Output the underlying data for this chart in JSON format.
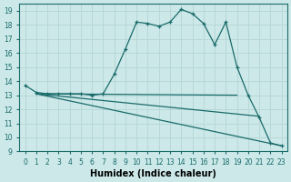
{
  "xlabel": "Humidex (Indice chaleur)",
  "bg_color": "#cce8e8",
  "line_color": "#1a6b6b",
  "grid_color": "#b8d8d8",
  "xlim": [
    -0.5,
    23.5
  ],
  "ylim": [
    9,
    19.5
  ],
  "xtick_labels": [
    "0",
    "1",
    "2",
    "3",
    "4",
    "5",
    "6",
    "7",
    "8",
    "9",
    "10",
    "11",
    "12",
    "13",
    "14",
    "15",
    "16",
    "17",
    "18",
    "19",
    "20",
    "21",
    "22",
    "23"
  ],
  "yticks": [
    9,
    10,
    11,
    12,
    13,
    14,
    15,
    16,
    17,
    18,
    19
  ],
  "curve1_x": [
    0,
    1,
    2,
    3,
    4,
    5,
    6,
    7,
    8,
    9,
    10,
    11,
    12,
    13,
    14,
    15,
    16,
    17,
    18,
    19,
    20,
    21,
    22,
    23
  ],
  "curve1_y": [
    13.7,
    13.2,
    13.1,
    13.1,
    13.1,
    13.1,
    13.0,
    13.1,
    14.5,
    16.3,
    18.2,
    18.1,
    17.9,
    18.2,
    19.1,
    18.8,
    18.1,
    16.6,
    18.2,
    15.0,
    13.0,
    11.4,
    9.6,
    9.4
  ],
  "line2_x": [
    1,
    19
  ],
  "line2_y": [
    13.1,
    13.0
  ],
  "line3_x": [
    1,
    23
  ],
  "line3_y": [
    13.1,
    9.4
  ],
  "line4_x": [
    1,
    21
  ],
  "line4_y": [
    13.1,
    11.5
  ]
}
